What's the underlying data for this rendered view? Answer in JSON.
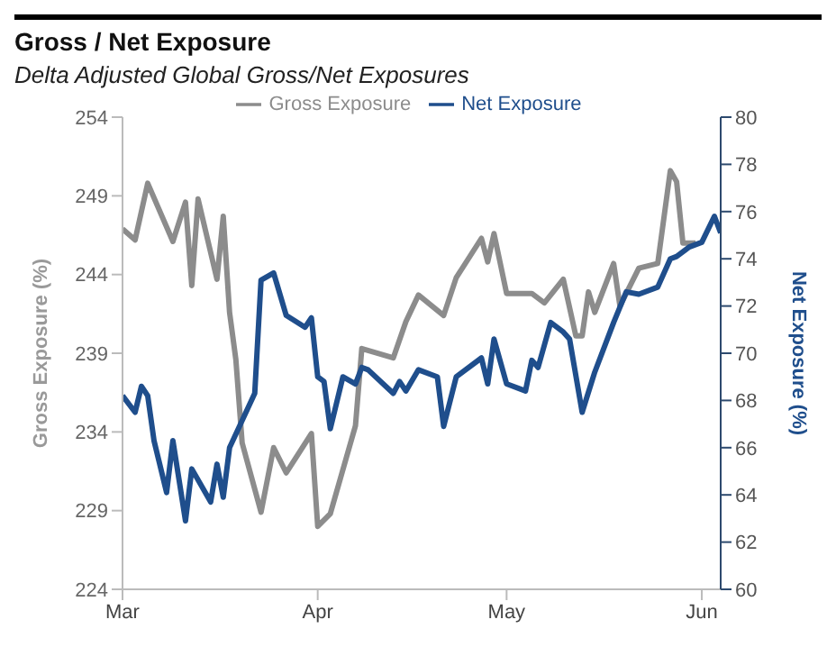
{
  "chart_data": {
    "type": "line",
    "title": "Gross / Net Exposure",
    "subtitle": "Delta Adjusted Global Gross/Net Exposures",
    "ylabel": "Gross Exposure (%)",
    "y2label": "Net Exposure (%)",
    "xlim": [
      "--03-01",
      "--06-04"
    ],
    "xticks": [
      {
        "value": "--03-01",
        "label": "Mar"
      },
      {
        "value": "--04-01",
        "label": "Apr"
      },
      {
        "value": "--05-01",
        "label": "May"
      },
      {
        "value": "--06-01",
        "label": "Jun"
      }
    ],
    "ylim": [
      224,
      254
    ],
    "yticks": [
      224,
      229,
      234,
      239,
      244,
      249,
      254
    ],
    "y2lim": [
      60,
      80
    ],
    "y2ticks": [
      60,
      62,
      64,
      66,
      68,
      70,
      72,
      74,
      76,
      78,
      80
    ],
    "legend": "top",
    "marker": "none",
    "line_style": "solid",
    "series": [
      {
        "name": "Gross Exposure",
        "color": "#8c8c8c",
        "x": [
          "--03-01",
          "--03-03",
          "--03-05",
          "--03-09",
          "--03-11",
          "--03-12",
          "--03-13",
          "--03-16",
          "--03-17",
          "--03-18",
          "--03-19",
          "--03-20",
          "--03-23",
          "--03-25",
          "--03-27",
          "--03-31",
          "--04-01",
          "--04-03",
          "--04-07",
          "--04-08",
          "--04-13",
          "--04-15",
          "--04-17",
          "--04-21",
          "--04-23",
          "--04-27",
          "--04-28",
          "--04-29",
          "--05-01",
          "--05-05",
          "--05-07",
          "--05-10",
          "--05-12",
          "--05-13",
          "--05-14",
          "--05-15",
          "--05-18",
          "--05-19",
          "--05-22",
          "--05-25",
          "--05-27",
          "--05-28",
          "--05-29",
          "--05-31"
        ],
        "values": [
          246.9,
          246.2,
          249.8,
          246.1,
          248.6,
          243.3,
          248.8,
          243.7,
          247.7,
          241.6,
          238.6,
          233.3,
          228.9,
          233.0,
          231.4,
          233.9,
          228.0,
          228.8,
          234.4,
          239.3,
          238.7,
          241.0,
          242.7,
          241.4,
          243.8,
          246.3,
          244.8,
          246.6,
          242.8,
          242.8,
          242.2,
          243.7,
          240.1,
          240.1,
          242.9,
          241.6,
          244.7,
          242.0,
          244.4,
          244.7,
          250.6,
          249.9,
          246.0,
          246.0
        ]
      },
      {
        "name": "Net Exposure",
        "color": "#1f4e8c",
        "axis": "y2",
        "x": [
          "--03-01",
          "--03-03",
          "--03-04",
          "--03-05",
          "--03-06",
          "--03-08",
          "--03-09",
          "--03-11",
          "--03-12",
          "--03-15",
          "--03-16",
          "--03-17",
          "--03-18",
          "--03-22",
          "--03-23",
          "--03-25",
          "--03-27",
          "--03-30",
          "--03-31",
          "--04-01",
          "--04-02",
          "--04-03",
          "--04-05",
          "--04-07",
          "--04-08",
          "--04-09",
          "--04-13",
          "--04-14",
          "--04-15",
          "--04-17",
          "--04-20",
          "--04-21",
          "--04-23",
          "--04-27",
          "--04-28",
          "--04-29",
          "--05-01",
          "--05-04",
          "--05-05",
          "--05-06",
          "--05-08",
          "--05-10",
          "--05-11",
          "--05-13",
          "--05-15",
          "--05-18",
          "--05-20",
          "--05-22",
          "--05-25",
          "--05-27",
          "--05-28",
          "--05-30",
          "--06-01",
          "--06-03",
          "--06-04"
        ],
        "values": [
          68.2,
          67.5,
          68.6,
          68.2,
          66.3,
          64.1,
          66.3,
          62.9,
          65.1,
          63.7,
          65.3,
          63.9,
          66.0,
          68.3,
          73.1,
          73.4,
          71.6,
          71.1,
          71.5,
          69.0,
          68.8,
          66.8,
          69.0,
          68.7,
          69.4,
          69.3,
          68.3,
          68.8,
          68.4,
          69.3,
          69.0,
          66.9,
          69.0,
          69.8,
          68.7,
          70.6,
          68.7,
          68.4,
          69.7,
          69.4,
          71.3,
          70.9,
          70.6,
          67.5,
          69.2,
          71.3,
          72.6,
          72.5,
          72.8,
          74.0,
          74.1,
          74.5,
          74.7,
          75.8,
          75.1
        ]
      }
    ]
  }
}
